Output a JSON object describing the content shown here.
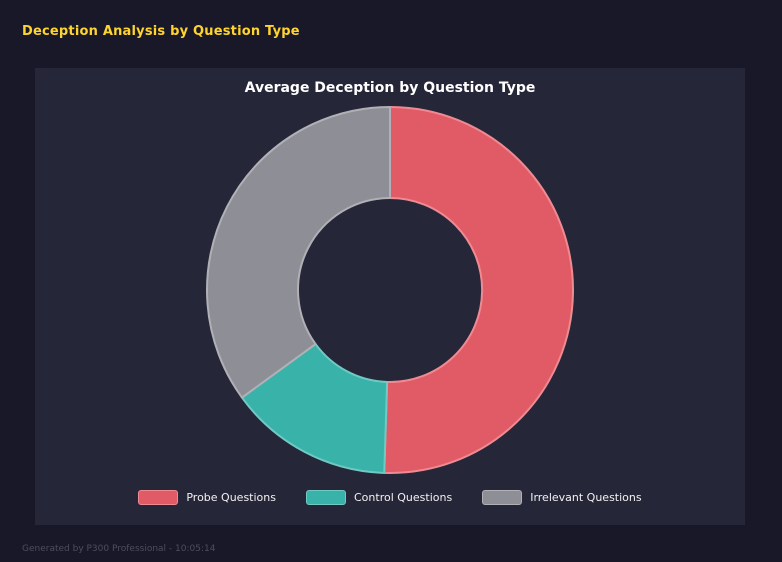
{
  "header": {
    "title": "Deception Analysis by Question Type"
  },
  "chart_data": {
    "type": "pie",
    "donut": true,
    "title": "Average Deception by Question Type",
    "categories": [
      "Probe Questions",
      "Control Questions",
      "Irrelevant Questions"
    ],
    "values": [
      50.5,
      14.5,
      35.0
    ],
    "colors": [
      "#e15b66",
      "#39b2a9",
      "#8e8e96"
    ],
    "border_colors": [
      "#ef8a92",
      "#6fcac2",
      "#b0b0b6"
    ],
    "legend_position": "bottom",
    "background_color": "#262639"
  },
  "footer": {
    "text": "Generated by P300 Professional - 10:05:14"
  }
}
